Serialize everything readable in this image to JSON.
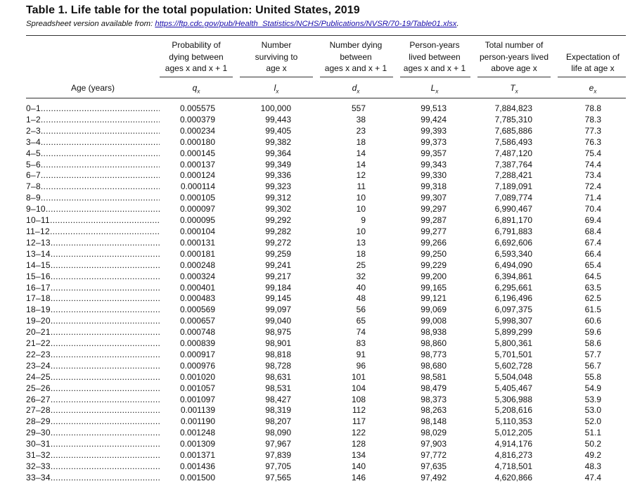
{
  "title": "Table 1. Life table for the total population: United States, 2019",
  "subtitle": {
    "prefix": "Spreadsheet version available from: ",
    "link": "https://ftp.cdc.gov/pub/Health_Statistics/NCHS/Publications/NVSR/70-19/Table01.xlsx",
    "suffix": "."
  },
  "columns": [
    {
      "key": "q",
      "header": [
        "Probability of",
        "dying between",
        "ages x and x + 1"
      ],
      "symbol": "q",
      "sub": "x"
    },
    {
      "key": "l",
      "header": [
        "Number",
        "surviving to",
        "age x"
      ],
      "symbol": "l",
      "sub": "x"
    },
    {
      "key": "d",
      "header": [
        "Number dying",
        "between",
        "ages x and x + 1"
      ],
      "symbol": "d",
      "sub": "x"
    },
    {
      "key": "L",
      "header": [
        "Person-years",
        "lived between",
        "ages x and x + 1"
      ],
      "symbol": "L",
      "sub": "x"
    },
    {
      "key": "T",
      "header": [
        "Total number of",
        "person-years lived",
        "above age x"
      ],
      "symbol": "T",
      "sub": "x"
    },
    {
      "key": "e",
      "header": [
        "Expectation of",
        "life at age x"
      ],
      "symbol": "e",
      "sub": "x"
    }
  ],
  "age_header": "Age (years)",
  "rows": [
    {
      "age": "0–1",
      "q": "0.005575",
      "l": "100,000",
      "d": "557",
      "L": "99,513",
      "T": "7,884,823",
      "e": "78.8"
    },
    {
      "age": "1–2",
      "q": "0.000379",
      "l": "99,443",
      "d": "38",
      "L": "99,424",
      "T": "7,785,310",
      "e": "78.3"
    },
    {
      "age": "2–3",
      "q": "0.000234",
      "l": "99,405",
      "d": "23",
      "L": "99,393",
      "T": "7,685,886",
      "e": "77.3"
    },
    {
      "age": "3–4",
      "q": "0.000180",
      "l": "99,382",
      "d": "18",
      "L": "99,373",
      "T": "7,586,493",
      "e": "76.3"
    },
    {
      "age": "4–5",
      "q": "0.000145",
      "l": "99,364",
      "d": "14",
      "L": "99,357",
      "T": "7,487,120",
      "e": "75.4"
    },
    {
      "age": "5–6",
      "q": "0.000137",
      "l": "99,349",
      "d": "14",
      "L": "99,343",
      "T": "7,387,764",
      "e": "74.4"
    },
    {
      "age": "6–7",
      "q": "0.000124",
      "l": "99,336",
      "d": "12",
      "L": "99,330",
      "T": "7,288,421",
      "e": "73.4"
    },
    {
      "age": "7–8",
      "q": "0.000114",
      "l": "99,323",
      "d": "11",
      "L": "99,318",
      "T": "7,189,091",
      "e": "72.4"
    },
    {
      "age": "8–9",
      "q": "0.000105",
      "l": "99,312",
      "d": "10",
      "L": "99,307",
      "T": "7,089,774",
      "e": "71.4"
    },
    {
      "age": "9–10",
      "q": "0.000097",
      "l": "99,302",
      "d": "10",
      "L": "99,297",
      "T": "6,990,467",
      "e": "70.4"
    },
    {
      "age": "10–11",
      "q": "0.000095",
      "l": "99,292",
      "d": "9",
      "L": "99,287",
      "T": "6,891,170",
      "e": "69.4"
    },
    {
      "age": "11–12",
      "q": "0.000104",
      "l": "99,282",
      "d": "10",
      "L": "99,277",
      "T": "6,791,883",
      "e": "68.4"
    },
    {
      "age": "12–13",
      "q": "0.000131",
      "l": "99,272",
      "d": "13",
      "L": "99,266",
      "T": "6,692,606",
      "e": "67.4"
    },
    {
      "age": "13–14",
      "q": "0.000181",
      "l": "99,259",
      "d": "18",
      "L": "99,250",
      "T": "6,593,340",
      "e": "66.4"
    },
    {
      "age": "14–15",
      "q": "0.000248",
      "l": "99,241",
      "d": "25",
      "L": "99,229",
      "T": "6,494,090",
      "e": "65.4"
    },
    {
      "age": "15–16",
      "q": "0.000324",
      "l": "99,217",
      "d": "32",
      "L": "99,200",
      "T": "6,394,861",
      "e": "64.5"
    },
    {
      "age": "16–17",
      "q": "0.000401",
      "l": "99,184",
      "d": "40",
      "L": "99,165",
      "T": "6,295,661",
      "e": "63.5"
    },
    {
      "age": "17–18",
      "q": "0.000483",
      "l": "99,145",
      "d": "48",
      "L": "99,121",
      "T": "6,196,496",
      "e": "62.5"
    },
    {
      "age": "18–19",
      "q": "0.000569",
      "l": "99,097",
      "d": "56",
      "L": "99,069",
      "T": "6,097,375",
      "e": "61.5"
    },
    {
      "age": "19–20",
      "q": "0.000657",
      "l": "99,040",
      "d": "65",
      "L": "99,008",
      "T": "5,998,307",
      "e": "60.6"
    },
    {
      "age": "20–21",
      "q": "0.000748",
      "l": "98,975",
      "d": "74",
      "L": "98,938",
      "T": "5,899,299",
      "e": "59.6"
    },
    {
      "age": "21–22",
      "q": "0.000839",
      "l": "98,901",
      "d": "83",
      "L": "98,860",
      "T": "5,800,361",
      "e": "58.6"
    },
    {
      "age": "22–23",
      "q": "0.000917",
      "l": "98,818",
      "d": "91",
      "L": "98,773",
      "T": "5,701,501",
      "e": "57.7"
    },
    {
      "age": "23–24",
      "q": "0.000976",
      "l": "98,728",
      "d": "96",
      "L": "98,680",
      "T": "5,602,728",
      "e": "56.7"
    },
    {
      "age": "24–25",
      "q": "0.001020",
      "l": "98,631",
      "d": "101",
      "L": "98,581",
      "T": "5,504,048",
      "e": "55.8"
    },
    {
      "age": "25–26",
      "q": "0.001057",
      "l": "98,531",
      "d": "104",
      "L": "98,479",
      "T": "5,405,467",
      "e": "54.9"
    },
    {
      "age": "26–27",
      "q": "0.001097",
      "l": "98,427",
      "d": "108",
      "L": "98,373",
      "T": "5,306,988",
      "e": "53.9"
    },
    {
      "age": "27–28",
      "q": "0.001139",
      "l": "98,319",
      "d": "112",
      "L": "98,263",
      "T": "5,208,616",
      "e": "53.0"
    },
    {
      "age": "28–29",
      "q": "0.001190",
      "l": "98,207",
      "d": "117",
      "L": "98,148",
      "T": "5,110,353",
      "e": "52.0"
    },
    {
      "age": "29–30",
      "q": "0.001248",
      "l": "98,090",
      "d": "122",
      "L": "98,029",
      "T": "5,012,205",
      "e": "51.1"
    },
    {
      "age": "30–31",
      "q": "0.001309",
      "l": "97,967",
      "d": "128",
      "L": "97,903",
      "T": "4,914,176",
      "e": "50.2"
    },
    {
      "age": "31–32",
      "q": "0.001371",
      "l": "97,839",
      "d": "134",
      "L": "97,772",
      "T": "4,816,273",
      "e": "49.2"
    },
    {
      "age": "32–33",
      "q": "0.001436",
      "l": "97,705",
      "d": "140",
      "L": "97,635",
      "T": "4,718,501",
      "e": "48.3"
    },
    {
      "age": "33–34",
      "q": "0.001500",
      "l": "97,565",
      "d": "146",
      "L": "97,492",
      "T": "4,620,866",
      "e": "47.4"
    }
  ]
}
